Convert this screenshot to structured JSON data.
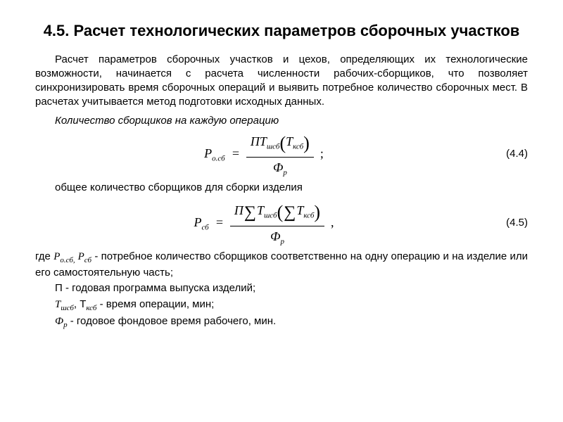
{
  "title": "4.5. Расчет технологических  параметров сборочных участков",
  "paragraph1": "Расчет параметров сборочных участков и цехов, определяющих их технологические возможности, начинается с расчета численности рабочих-сборщиков, что позволяет синхронизировать время сборочных операций и выявить потребное количество сборочных мест. В расчетах учитывается метод подготовки исходных данных.",
  "line_italic": "Количество сборщиков на каждую операцию",
  "eq1": {
    "lhs": "P",
    "lhs_sub": "о.сб",
    "num_a": "ПТ",
    "num_a_sub": "шсб",
    "num_b": "Т",
    "num_b_sub": "ксб",
    "den": "Ф",
    "den_sub": "р",
    "num": "(4.4)"
  },
  "line2": "общее количество сборщиков для сборки изделия",
  "eq2": {
    "lhs": "P",
    "lhs_sub": "сб",
    "pi": "П",
    "t1": "Т",
    "t1_sub": "шсб",
    "t2": "Т",
    "t2_sub": "ксб",
    "den": "Ф",
    "den_sub": "р",
    "num": "(4.5)"
  },
  "def1_a": "где ",
  "def1_b": "Р",
  "def1_b_sub": "о.сб,",
  "def1_c": " Р",
  "def1_c_sub": "сб",
  "def1_d": " - потребное количество сборщиков соответственно на одну операцию и на изделие или его самостоятельную часть;",
  "def2": "П - годовая программа выпуска изделий;",
  "def3_a": "Т",
  "def3_a_sub": "шсб",
  "def3_b": ", Т",
  "def3_b_sub": "ксб",
  "def3_c": " - время операции, мин;",
  "def4_a": "Ф",
  "def4_a_sub": "р",
  "def4_b": " - годовое фондовое время рабочего, мин.",
  "colors": {
    "text": "#000000",
    "background": "#ffffff"
  },
  "fonts": {
    "body": "Arial",
    "math": "Times New Roman",
    "title_size_pt": 22,
    "body_size_pt": 15,
    "formula_size_pt": 18
  }
}
